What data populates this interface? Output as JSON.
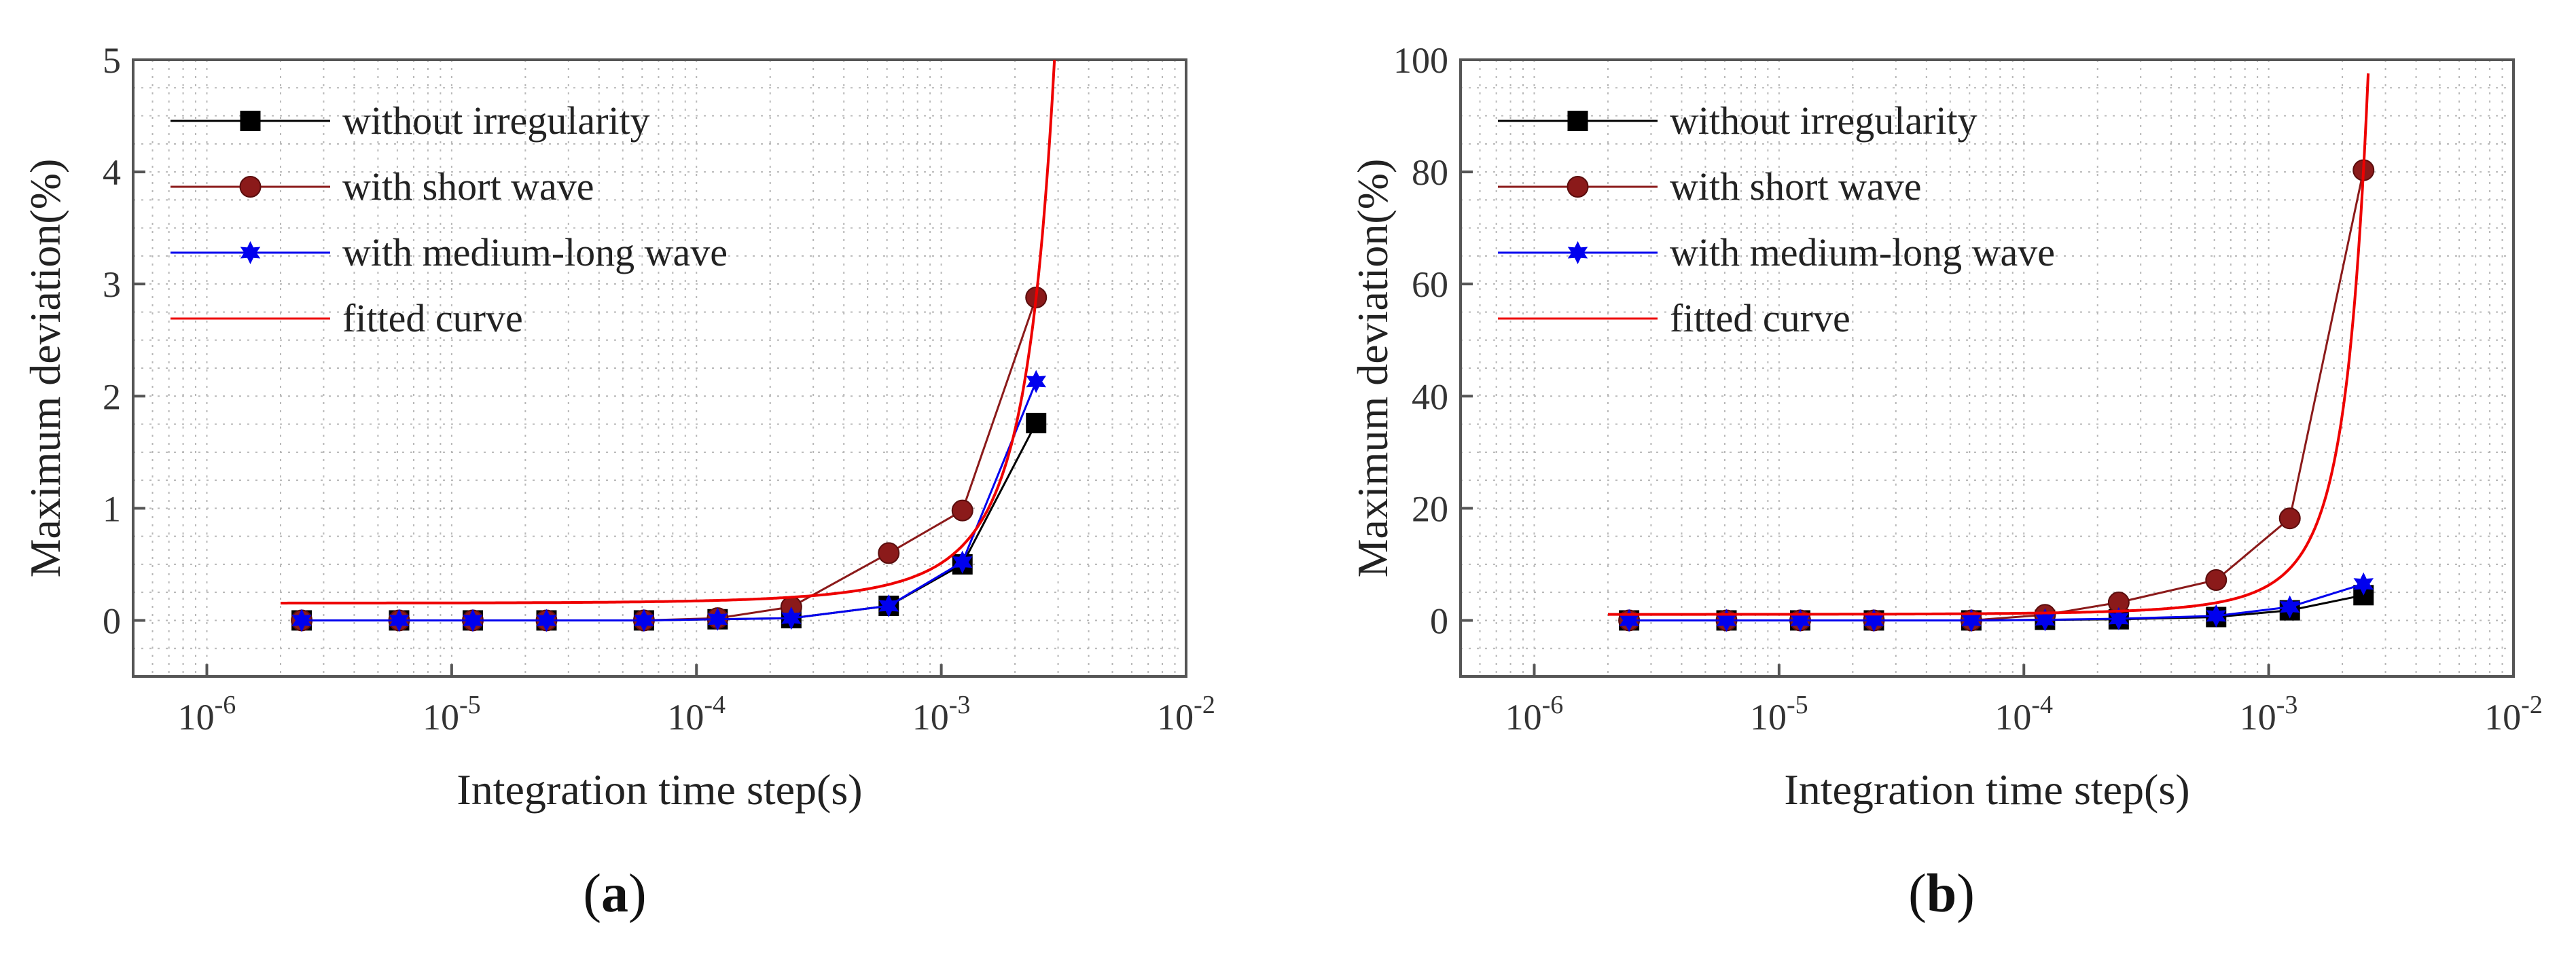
{
  "chart_data": [
    {
      "type": "line",
      "panel": "(a)",
      "panel_letter": "a",
      "xlabel": "Integration time step(s)",
      "ylabel": "Maximum deviation(%)",
      "xscale": "log",
      "xlim": [
        5e-07,
        0.01
      ],
      "ylim": [
        -0.5,
        5
      ],
      "x_ticks": [
        {
          "value": 1e-06,
          "base": "10",
          "exp": "-6"
        },
        {
          "value": 1e-05,
          "base": "10",
          "exp": "-5"
        },
        {
          "value": 0.0001,
          "base": "10",
          "exp": "-4"
        },
        {
          "value": 0.001,
          "base": "10",
          "exp": "-3"
        },
        {
          "value": 0.01,
          "base": "10",
          "exp": "-2"
        }
      ],
      "y_ticks": [
        0,
        1,
        2,
        3,
        4,
        5
      ],
      "y_tick_labels": [
        "0",
        "1",
        "2",
        "3",
        "4",
        "5"
      ],
      "grid": true,
      "legend_position": "top-left",
      "x": [
        2.44e-06,
        6.1e-06,
        1.22e-05,
        2.44e-05,
        6.1e-05,
        0.000122,
        0.000244,
        0.00061,
        0.00122,
        0.00244
      ],
      "series": [
        {
          "name": "without irregularity",
          "color": "#000000",
          "marker": "square",
          "values": [
            0,
            0,
            0,
            0,
            0,
            0.01,
            0.02,
            0.13,
            0.5,
            1.76
          ]
        },
        {
          "name": "with short wave",
          "color": "#8b1a1a",
          "marker": "circle",
          "values": [
            0,
            0,
            0,
            0,
            0,
            0.02,
            0.12,
            0.6,
            0.98,
            2.88
          ]
        },
        {
          "name": "with medium-long wave",
          "color": "#0000ee",
          "marker": "star",
          "values": [
            0,
            0,
            0,
            0,
            0,
            0.01,
            0.02,
            0.13,
            0.52,
            2.13
          ]
        },
        {
          "name": "fitted curve",
          "color": "#ee0000",
          "marker": "none",
          "fit": {
            "x_start": 2e-06,
            "x_end": 0.003,
            "exponent_ref": 0.00244,
            "amplitude": 2.88,
            "offset": 0,
            "rate": 1200
          }
        }
      ]
    },
    {
      "type": "line",
      "panel": "(b)",
      "panel_letter": "b",
      "xlabel": "Integration time step(s)",
      "ylabel": "Maximum deviation(%)",
      "xscale": "log",
      "xlim": [
        5e-07,
        0.01
      ],
      "ylim": [
        -10,
        100
      ],
      "x_ticks": [
        {
          "value": 1e-06,
          "base": "10",
          "exp": "-6"
        },
        {
          "value": 1e-05,
          "base": "10",
          "exp": "-5"
        },
        {
          "value": 0.0001,
          "base": "10",
          "exp": "-4"
        },
        {
          "value": 0.001,
          "base": "10",
          "exp": "-3"
        },
        {
          "value": 0.01,
          "base": "10",
          "exp": "-2"
        }
      ],
      "y_ticks": [
        0,
        20,
        40,
        60,
        80,
        100
      ],
      "y_tick_labels": [
        "0",
        "20",
        "40",
        "60",
        "80",
        "100"
      ],
      "grid": true,
      "legend_position": "top-left",
      "x": [
        2.44e-06,
        6.1e-06,
        1.22e-05,
        2.44e-05,
        6.1e-05,
        0.000122,
        0.000244,
        0.00061,
        0.00122,
        0.00244
      ],
      "series": [
        {
          "name": "without irregularity",
          "color": "#000000",
          "marker": "square",
          "values": [
            0,
            0,
            0,
            0,
            0,
            0.1,
            0.2,
            0.6,
            1.8,
            4.5
          ]
        },
        {
          "name": "with short wave",
          "color": "#8b1a1a",
          "marker": "circle",
          "values": [
            0,
            0,
            0,
            0,
            0,
            1.0,
            3.2,
            7.2,
            18.2,
            80.3
          ]
        },
        {
          "name": "with medium-long wave",
          "color": "#0000ee",
          "marker": "star",
          "values": [
            0,
            0,
            0,
            0,
            0,
            0.1,
            0.3,
            0.8,
            2.4,
            6.5
          ]
        },
        {
          "name": "fitted curve",
          "color": "#ee0000",
          "marker": "none",
          "fit": {
            "x_start": 2e-06,
            "x_end": 0.00255,
            "exponent_ref": 0.00244,
            "amplitude": 80.3,
            "offset": 0,
            "rate": 1770
          }
        }
      ]
    }
  ]
}
